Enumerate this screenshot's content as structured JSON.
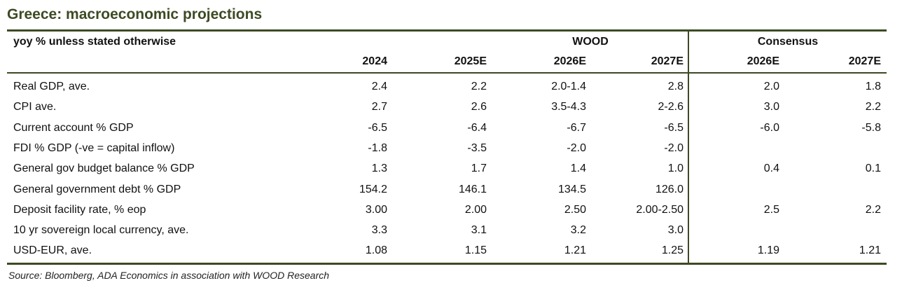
{
  "title": "Greece: macroeconomic projections",
  "table": {
    "header": {
      "label": "yoy % unless stated otherwise",
      "groups": [
        "WOOD",
        "Consensus"
      ],
      "columns": [
        "2024",
        "2025E",
        "2026E",
        "2027E",
        "2026E",
        "2027E"
      ]
    },
    "rows": [
      {
        "label": "Real GDP, ave.",
        "values": [
          "2.4",
          "2.2",
          "2.0-1.4",
          "2.8",
          "2.0",
          "1.8"
        ]
      },
      {
        "label": "CPI ave.",
        "values": [
          "2.7",
          "2.6",
          "3.5-4.3",
          "2-2.6",
          "3.0",
          "2.2"
        ]
      },
      {
        "label": "Current account % GDP",
        "values": [
          "-6.5",
          "-6.4",
          "-6.7",
          "-6.5",
          "-6.0",
          "-5.8"
        ]
      },
      {
        "label": "FDI % GDP (-ve = capital inflow)",
        "values": [
          "-1.8",
          "-3.5",
          "-2.0",
          "-2.0",
          null,
          null
        ]
      },
      {
        "label": "General gov budget balance % GDP",
        "values": [
          "1.3",
          "1.7",
          "1.4",
          "1.0",
          "0.4",
          "0.1"
        ]
      },
      {
        "label": "General government debt % GDP",
        "values": [
          "154.2",
          "146.1",
          "134.5",
          "126.0",
          null,
          null
        ]
      },
      {
        "label": "Deposit facility rate, % eop",
        "values": [
          "3.00",
          "2.00",
          "2.50",
          "2.00-2.50",
          "2.5",
          "2.2"
        ]
      },
      {
        "label": "10 yr sovereign local currency, ave.",
        "values": [
          "3.3",
          "3.1",
          "3.2",
          "3.0",
          null,
          null
        ]
      },
      {
        "label": "USD-EUR, ave.",
        "values": [
          "1.08",
          "1.15",
          "1.21",
          "1.25",
          "1.19",
          "1.21"
        ]
      }
    ]
  },
  "source": "Source: Bloomberg, ADA Economics in association with WOOD Research"
}
